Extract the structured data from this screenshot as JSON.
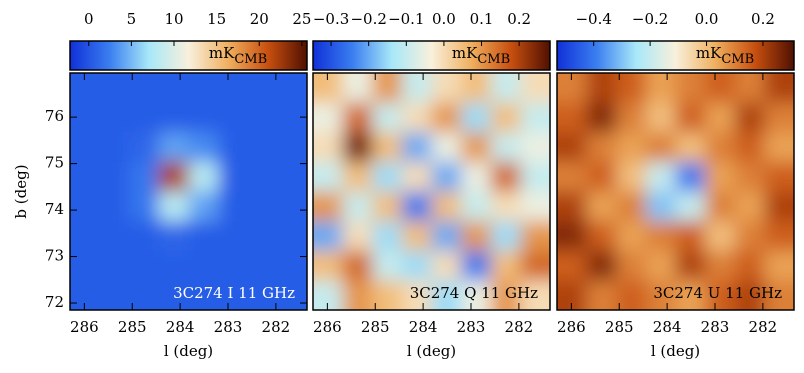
{
  "chart_data": [
    {
      "type": "heatmap",
      "title": "3C274 I 11 GHz",
      "label_color": "#ffffff",
      "xlabel": "l (deg)",
      "ylabel": "b (deg)",
      "xlim": [
        286.3,
        281.35
      ],
      "xticks": [
        286,
        285,
        284,
        283,
        282
      ],
      "ylim": [
        71.85,
        76.95
      ],
      "yticks": [
        72,
        73,
        74,
        75,
        76
      ],
      "unit": {
        "main": "mK",
        "sub": "CMB"
      },
      "clim": [
        -2.2,
        25.6
      ],
      "cticks": [
        0,
        5,
        10,
        15,
        20,
        25
      ],
      "colormap": [
        "#1030d8",
        "#3a7ef0",
        "#a8e8f8",
        "#f8f0dc",
        "#f0b060",
        "#c85010",
        "#501000"
      ],
      "values": [
        [
          0.5,
          0.5,
          0.5,
          0.5,
          0.5,
          0.5,
          0.5,
          0.5
        ],
        [
          0.5,
          0.5,
          0.5,
          0.5,
          0.5,
          0.5,
          0.5,
          0.5
        ],
        [
          0.5,
          0.5,
          1,
          4,
          3,
          0.5,
          0.5,
          0.5
        ],
        [
          0.5,
          0.5,
          2,
          22,
          8,
          0.5,
          0.5,
          0.5
        ],
        [
          0.5,
          0.5,
          2,
          8,
          4,
          0.5,
          0.5,
          0.5
        ],
        [
          0.5,
          0.5,
          0.5,
          1,
          0.5,
          0.5,
          0.5,
          0.5
        ],
        [
          0.5,
          0.5,
          0.5,
          0.5,
          0.5,
          0.5,
          0.5,
          0.5
        ],
        [
          0.5,
          0.5,
          0.5,
          0.5,
          0.5,
          0.5,
          0.5,
          0.5
        ]
      ]
    },
    {
      "type": "heatmap",
      "title": "3C274 Q 11 GHz",
      "label_color": "#000000",
      "xlabel": "l (deg)",
      "xlim": [
        286.3,
        281.35
      ],
      "xticks": [
        286,
        285,
        284,
        283,
        282
      ],
      "ylim": [
        71.85,
        76.95
      ],
      "unit": {
        "main": "mK",
        "sub": "CMB"
      },
      "clim": [
        -0.348,
        0.282
      ],
      "cticks": [
        {
          "value": -0.3,
          "label": "−0.3"
        },
        {
          "value": -0.2,
          "label": "−0.2"
        },
        {
          "value": -0.1,
          "label": "−0.1"
        },
        {
          "value": 0,
          "label": "0.0"
        },
        0.1,
        0.2
      ],
      "colormap": [
        "#1030d8",
        "#3a7ef0",
        "#a8e8f8",
        "#f8f0dc",
        "#f0b060",
        "#c85010",
        "#501000"
      ],
      "values": [
        [
          0.05,
          -0.05,
          0.1,
          -0.1,
          0.0,
          0.05,
          -0.1,
          0.0
        ],
        [
          -0.05,
          0.15,
          -0.1,
          0.0,
          0.1,
          -0.15,
          0.05,
          -0.1
        ],
        [
          0.0,
          0.25,
          0.05,
          -0.2,
          -0.05,
          0.1,
          -0.1,
          -0.05
        ],
        [
          -0.1,
          0.05,
          -0.15,
          0.0,
          -0.2,
          -0.05,
          0.15,
          -0.1
        ],
        [
          0.1,
          -0.1,
          0.05,
          -0.25,
          0.05,
          -0.1,
          0.0,
          -0.05
        ],
        [
          -0.2,
          0.0,
          -0.15,
          0.05,
          -0.2,
          0.1,
          -0.15,
          0.1
        ],
        [
          0.05,
          0.15,
          -0.1,
          -0.15,
          0.0,
          -0.25,
          0.05,
          0.15
        ],
        [
          -0.1,
          0.1,
          0.05,
          0.0,
          -0.15,
          -0.05,
          0.1,
          0.0
        ]
      ]
    },
    {
      "type": "heatmap",
      "title": "3C274 U 11 GHz",
      "label_color": "#000000",
      "xlabel": "l (deg)",
      "xlim": [
        286.3,
        281.35
      ],
      "xticks": [
        286,
        285,
        284,
        283,
        282
      ],
      "ylim": [
        71.85,
        76.95
      ],
      "unit": {
        "main": "mK",
        "sub": "CMB"
      },
      "clim": [
        -0.53,
        0.31
      ],
      "cticks": [
        {
          "value": -0.4,
          "label": "−0.4"
        },
        {
          "value": -0.2,
          "label": "−0.2"
        },
        {
          "value": 0,
          "label": "0.0"
        },
        0.2
      ],
      "colormap": [
        "#1030d8",
        "#3a7ef0",
        "#a8e8f8",
        "#f8f0dc",
        "#f0b060",
        "#c85010",
        "#501000"
      ],
      "values": [
        [
          0.1,
          0.2,
          0.15,
          0.05,
          0.1,
          0.15,
          0.1,
          0.2
        ],
        [
          0.15,
          0.25,
          0.1,
          0.0,
          0.15,
          0.05,
          0.2,
          0.1
        ],
        [
          0.2,
          0.1,
          0.05,
          0.1,
          0.0,
          0.1,
          0.15,
          0.05
        ],
        [
          0.1,
          0.15,
          0.0,
          -0.2,
          -0.4,
          0.05,
          0.1,
          0.15
        ],
        [
          0.2,
          0.05,
          0.1,
          -0.3,
          -0.2,
          0.1,
          0.05,
          0.2
        ],
        [
          0.25,
          0.15,
          0.05,
          0.1,
          0.15,
          0.0,
          0.1,
          0.15
        ],
        [
          0.15,
          0.25,
          0.1,
          0.05,
          0.2,
          0.1,
          0.15,
          0.05
        ],
        [
          0.2,
          0.1,
          0.15,
          0.1,
          0.05,
          0.15,
          0.2,
          0.1
        ]
      ]
    }
  ]
}
